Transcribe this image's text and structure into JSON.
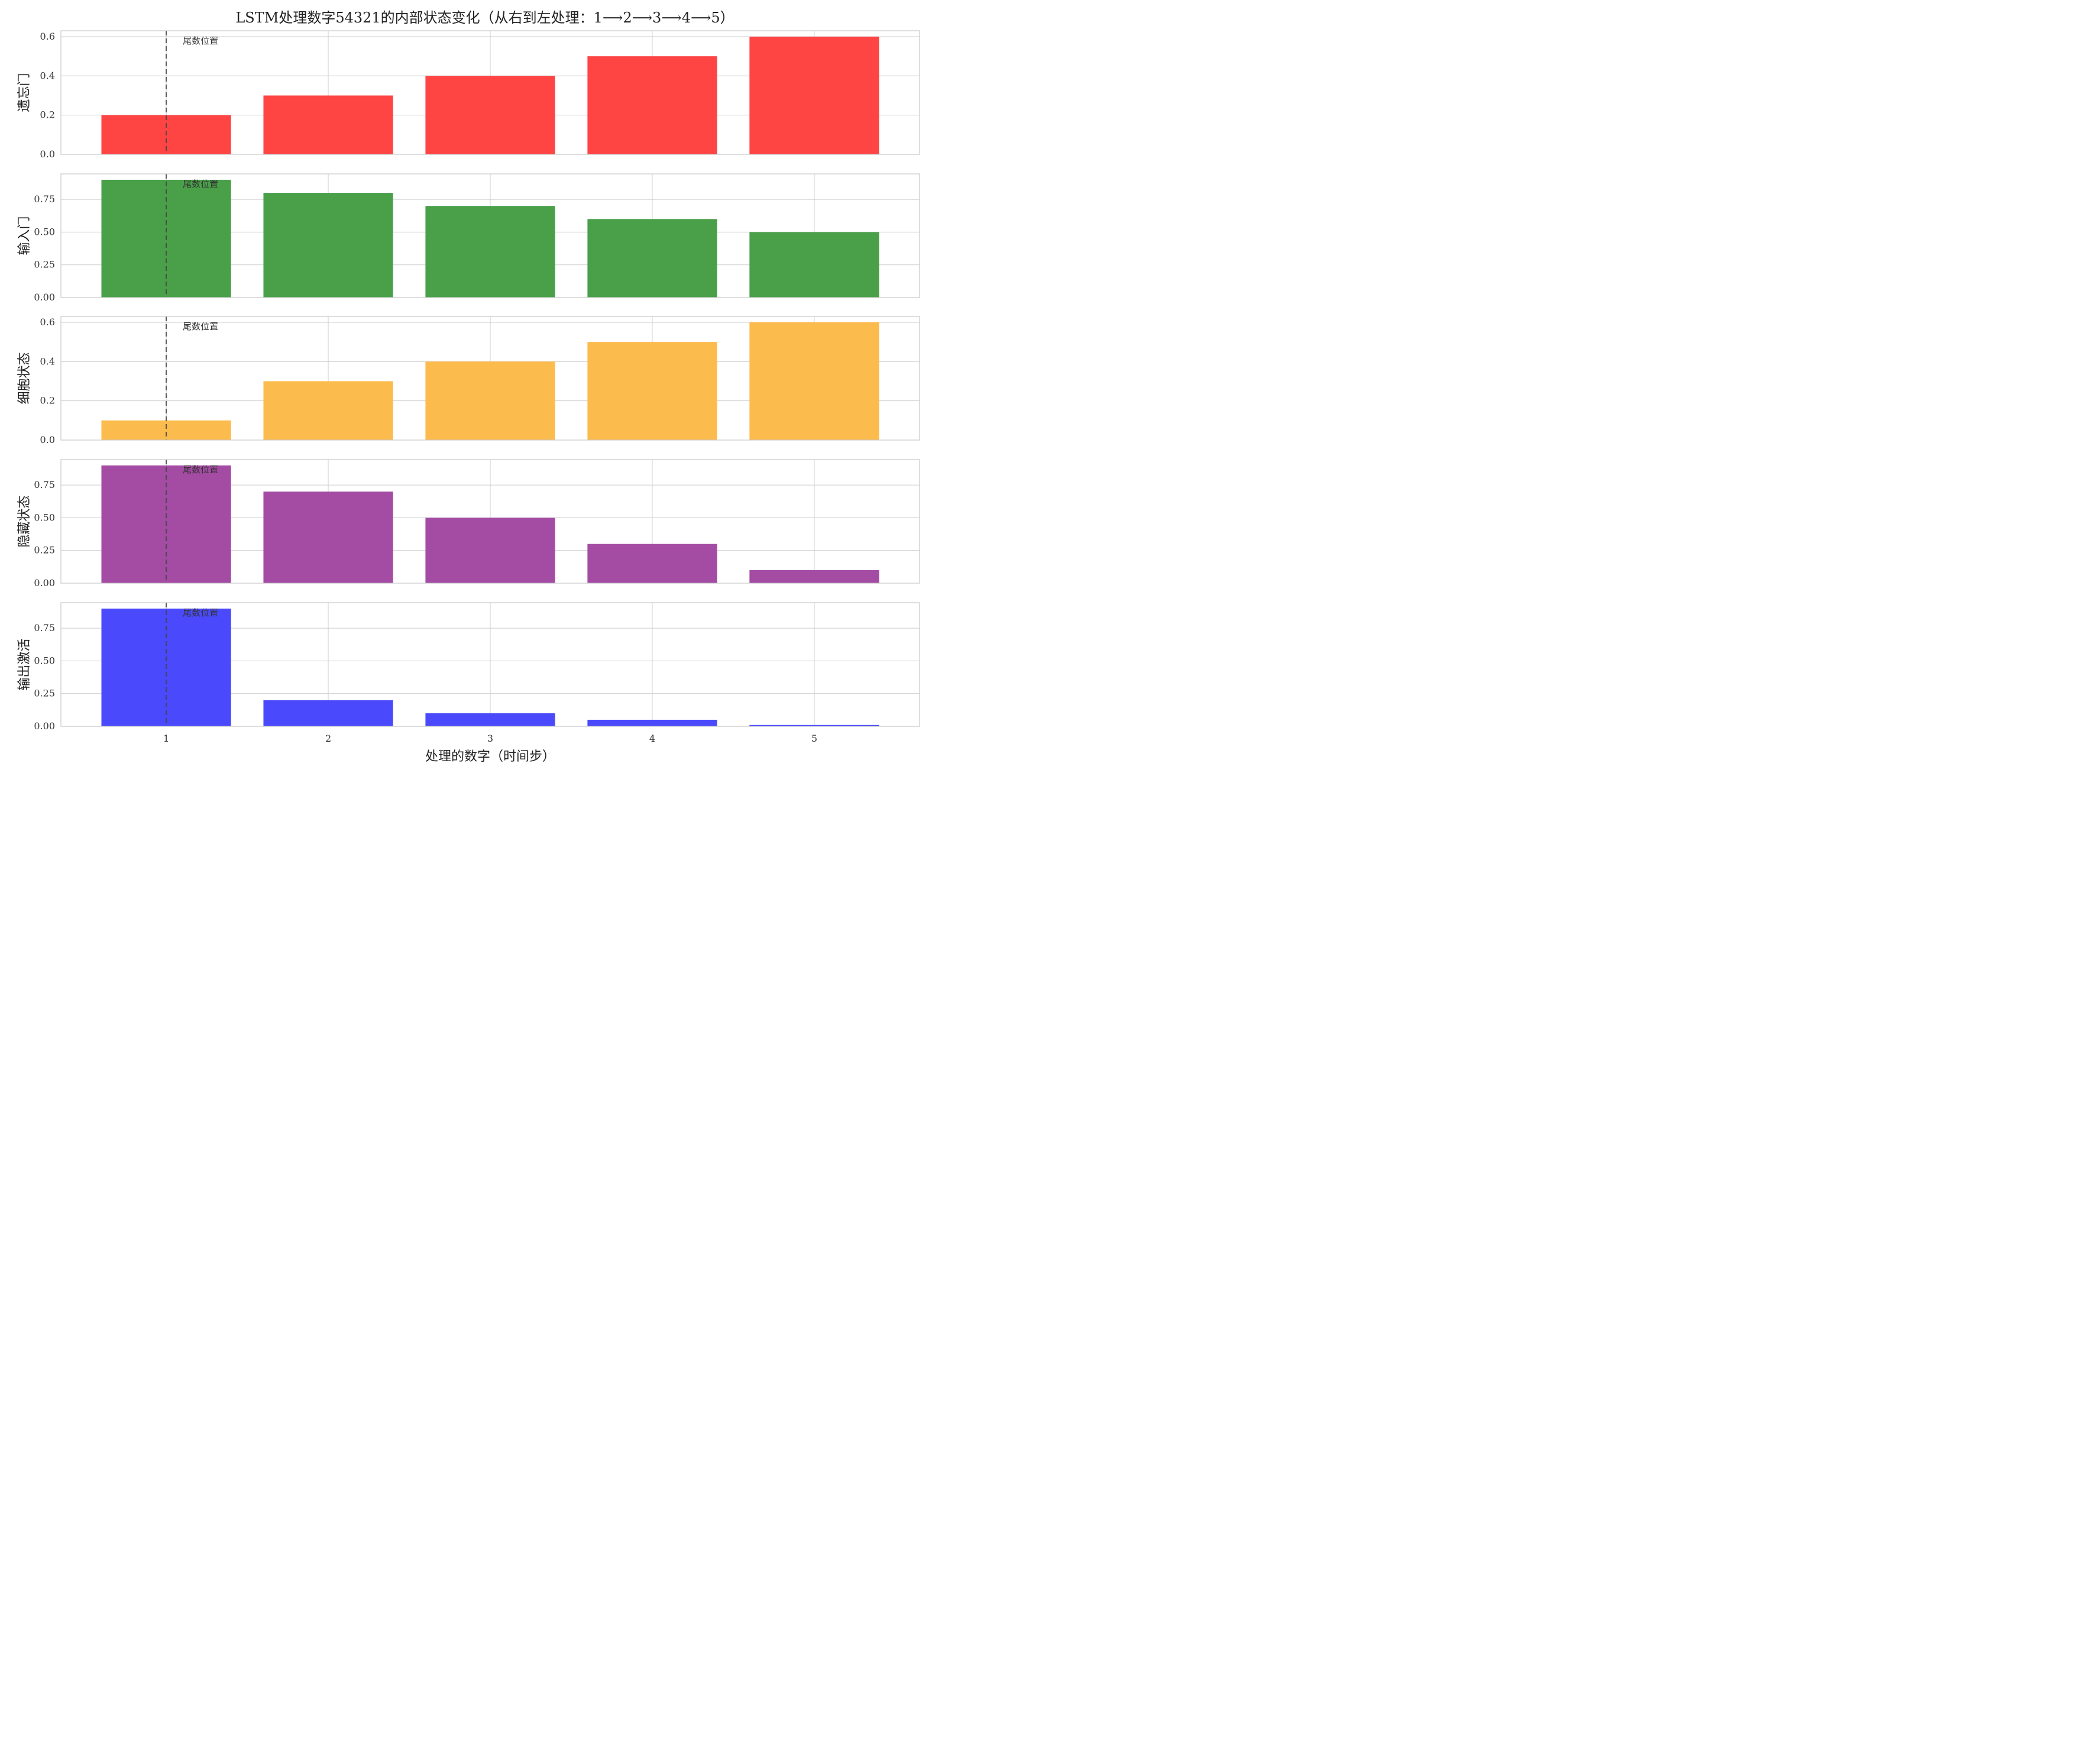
{
  "chart_data": {
    "type": "bar",
    "title": "LSTM处理数字54321的内部状态变化（从右到左处理：1⟶2⟶3⟶4⟶5）",
    "xlabel": "处理的数字（时间步）",
    "x": [
      1,
      2,
      3,
      4,
      5
    ],
    "xlim": [
      0.35,
      5.65
    ],
    "grid": true,
    "marker": {
      "x": 1,
      "label": "尾数位置",
      "style": "dashed",
      "color": "#555555"
    },
    "panels": [
      {
        "ylabel": "遗忘门",
        "color": "#ff4444",
        "values": [
          0.2,
          0.3,
          0.4,
          0.5,
          0.6
        ],
        "ylim": [
          0,
          0.63
        ],
        "yticks": [
          "0.0",
          "0.2",
          "0.4",
          "0.6"
        ]
      },
      {
        "ylabel": "输入门",
        "color": "#49a049",
        "values": [
          0.9,
          0.8,
          0.7,
          0.6,
          0.5
        ],
        "ylim": [
          0,
          0.945
        ],
        "yticks": [
          "0.00",
          "0.25",
          "0.50",
          "0.75"
        ]
      },
      {
        "ylabel": "细胞状态",
        "color": "#fcbb4d",
        "values": [
          0.1,
          0.3,
          0.4,
          0.5,
          0.6
        ],
        "ylim": [
          0,
          0.63
        ],
        "yticks": [
          "0.0",
          "0.2",
          "0.4",
          "0.6"
        ]
      },
      {
        "ylabel": "隐藏状态",
        "color": "#a44ba4",
        "values": [
          0.9,
          0.7,
          0.5,
          0.3,
          0.1
        ],
        "ylim": [
          0,
          0.945
        ],
        "yticks": [
          "0.00",
          "0.25",
          "0.50",
          "0.75"
        ]
      },
      {
        "ylabel": "输出激活",
        "color": "#4a4afc",
        "values": [
          0.9,
          0.2,
          0.1,
          0.05,
          0.01
        ],
        "ylim": [
          0,
          0.945
        ],
        "yticks": [
          "0.00",
          "0.25",
          "0.50",
          "0.75"
        ]
      }
    ]
  }
}
